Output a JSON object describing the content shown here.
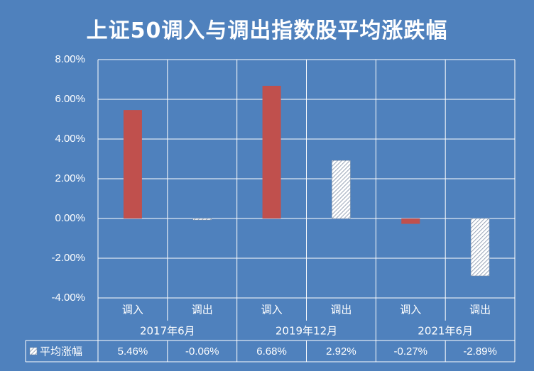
{
  "chart_data": {
    "type": "bar",
    "title": "上证50调入与调出指数股平均涨跌幅",
    "groups": [
      "2017年6月",
      "2019年12月",
      "2021年6月"
    ],
    "categories": [
      "调入",
      "调出",
      "调入",
      "调出",
      "调入",
      "调出"
    ],
    "series": [
      {
        "name": "平均涨幅",
        "values": [
          5.46,
          -0.06,
          6.68,
          2.92,
          -0.27,
          -2.89
        ],
        "labels": [
          "5.46%",
          "-0.06%",
          "6.68%",
          "2.92%",
          "-0.27%",
          "-2.89%"
        ],
        "fills": [
          "solid",
          "hatch",
          "solid",
          "hatch",
          "solid",
          "hatch"
        ]
      }
    ],
    "ylim": [
      -4,
      8
    ],
    "yticks": [
      "8.00%",
      "6.00%",
      "4.00%",
      "2.00%",
      "0.00%",
      "-2.00%",
      "-4.00%"
    ],
    "grid": true,
    "data_table": true
  },
  "colors": {
    "background": "#4f81bd",
    "bar_solid": "#c0504d",
    "gridline": "#ffffff",
    "text": "#ffffff",
    "hatch_bg": "#ffffff",
    "hatch_line": "#7f8fa6"
  }
}
